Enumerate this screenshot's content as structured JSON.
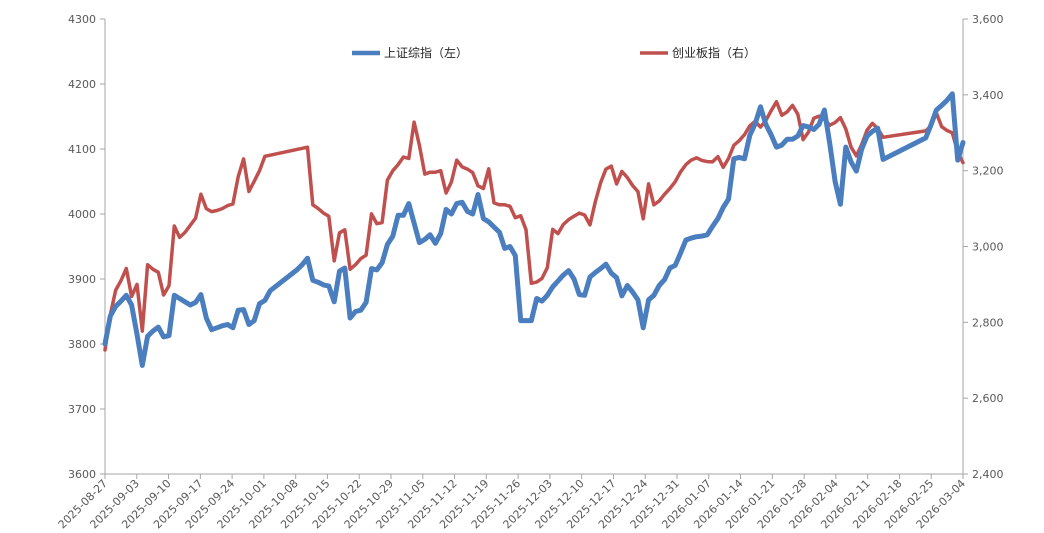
{
  "chart_data": {
    "type": "line",
    "title": "",
    "x_tick_labels": [
      "2025-08-27",
      "2025-09-03",
      "2025-09-10",
      "2025-09-17",
      "2025-09-24",
      "2025-10-01",
      "2025-10-08",
      "2025-10-15",
      "2025-10-22",
      "2025-10-29",
      "2025-11-05",
      "2025-11-12",
      "2025-11-19",
      "2025-11-26",
      "2025-12-03",
      "2025-12-10",
      "2025-12-17",
      "2025-12-24",
      "2025-12-31",
      "2026-01-07",
      "2026-01-14",
      "2026-01-21",
      "2026-01-28",
      "2026-02-04",
      "2026-02-11",
      "2026-02-18",
      "2026-02-25",
      "2026-03-04"
    ],
    "y_left": {
      "min": 3600,
      "max": 4300,
      "ticks": [
        3600,
        3700,
        3800,
        3900,
        4000,
        4100,
        4200,
        4300
      ],
      "labels": [
        "3600",
        "3700",
        "3800",
        "3900",
        "4000",
        "4100",
        "4200",
        "4300"
      ]
    },
    "y_right": {
      "min": 2400,
      "max": 3600,
      "ticks": [
        2400,
        2600,
        2800,
        3000,
        3200,
        3400,
        3600
      ],
      "labels": [
        "2,400",
        "2,600",
        "2,800",
        "3,000",
        "3,200",
        "3,400",
        "3,600"
      ]
    },
    "series": [
      {
        "name": "上证综指（左）",
        "axis": "left",
        "color": "#4a7ebf",
        "points": [
          [
            0,
            3800
          ],
          [
            1,
            3843
          ],
          [
            2,
            3858
          ],
          [
            3,
            3866
          ],
          [
            4,
            3875
          ],
          [
            5,
            3860
          ],
          [
            6,
            3815
          ],
          [
            7,
            3767
          ],
          [
            8,
            3812
          ],
          [
            9,
            3820
          ],
          [
            10,
            3826
          ],
          [
            11,
            3811
          ],
          [
            12,
            3813
          ],
          [
            13,
            3875
          ],
          [
            14,
            3870
          ],
          [
            15,
            3865
          ],
          [
            16,
            3860
          ],
          [
            17,
            3864
          ],
          [
            18,
            3876
          ],
          [
            19,
            3840
          ],
          [
            20,
            3822
          ],
          [
            21,
            3825
          ],
          [
            22,
            3828
          ],
          [
            23,
            3830
          ],
          [
            24,
            3825
          ],
          [
            25,
            3852
          ],
          [
            26,
            3853
          ],
          [
            27,
            3830
          ],
          [
            28,
            3836
          ],
          [
            29,
            3862
          ],
          [
            30,
            3867
          ],
          [
            31,
            3882
          ],
          [
            36,
            3914
          ],
          [
            37,
            3922
          ],
          [
            38,
            3932
          ],
          [
            39,
            3898
          ],
          [
            40,
            3895
          ],
          [
            41,
            3891
          ],
          [
            42,
            3889
          ],
          [
            43,
            3865
          ],
          [
            44,
            3912
          ],
          [
            45,
            3917
          ],
          [
            46,
            3840
          ],
          [
            47,
            3850
          ],
          [
            48,
            3852
          ],
          [
            49,
            3864
          ],
          [
            50,
            3916
          ],
          [
            51,
            3914
          ],
          [
            52,
            3925
          ],
          [
            53,
            3953
          ],
          [
            54,
            3966
          ],
          [
            55,
            3998
          ],
          [
            56,
            3998
          ],
          [
            57,
            4016
          ],
          [
            58,
            3986
          ],
          [
            59,
            3956
          ],
          [
            60,
            3961
          ],
          [
            61,
            3968
          ],
          [
            62,
            3955
          ],
          [
            63,
            3970
          ],
          [
            64,
            4007
          ],
          [
            65,
            4000
          ],
          [
            66,
            4016
          ],
          [
            67,
            4018
          ],
          [
            68,
            4004
          ],
          [
            69,
            4000
          ],
          [
            70,
            4030
          ],
          [
            71,
            3993
          ],
          [
            72,
            3988
          ],
          [
            73,
            3980
          ],
          [
            74,
            3972
          ],
          [
            75,
            3947
          ],
          [
            76,
            3950
          ],
          [
            77,
            3936
          ],
          [
            78,
            3836
          ],
          [
            79,
            3836
          ],
          [
            80,
            3836
          ],
          [
            81,
            3870
          ],
          [
            82,
            3866
          ],
          [
            83,
            3875
          ],
          [
            84,
            3888
          ],
          [
            85,
            3897
          ],
          [
            86,
            3906
          ],
          [
            87,
            3913
          ],
          [
            88,
            3900
          ],
          [
            89,
            3876
          ],
          [
            90,
            3875
          ],
          [
            91,
            3903
          ],
          [
            92,
            3910
          ],
          [
            93,
            3916
          ],
          [
            94,
            3923
          ],
          [
            95,
            3909
          ],
          [
            96,
            3902
          ],
          [
            97,
            3874
          ],
          [
            98,
            3890
          ],
          [
            99,
            3880
          ],
          [
            100,
            3868
          ],
          [
            101,
            3825
          ],
          [
            102,
            3868
          ],
          [
            103,
            3875
          ],
          [
            104,
            3890
          ],
          [
            105,
            3899
          ],
          [
            106,
            3917
          ],
          [
            107,
            3921
          ],
          [
            108,
            3940
          ],
          [
            109,
            3960
          ],
          [
            110,
            3963
          ],
          [
            111,
            3965
          ],
          [
            112,
            3966
          ],
          [
            113,
            3968
          ],
          [
            114,
            3981
          ],
          [
            115,
            3993
          ],
          [
            116,
            4010
          ],
          [
            117,
            4023
          ],
          [
            118,
            4085
          ],
          [
            119,
            4087
          ],
          [
            120,
            4085
          ],
          [
            121,
            4121
          ],
          [
            122,
            4139
          ],
          [
            123,
            4165
          ],
          [
            124,
            4138
          ],
          [
            125,
            4122
          ],
          [
            126,
            4103
          ],
          [
            127,
            4106
          ],
          [
            128,
            4115
          ],
          [
            129,
            4115
          ],
          [
            130,
            4120
          ],
          [
            131,
            4136
          ],
          [
            132,
            4134
          ],
          [
            133,
            4130
          ],
          [
            134,
            4138
          ],
          [
            135,
            4160
          ],
          [
            136,
            4108
          ],
          [
            137,
            4050
          ],
          [
            138,
            4015
          ],
          [
            139,
            4103
          ],
          [
            140,
            4080
          ],
          [
            141,
            4066
          ],
          [
            142,
            4100
          ],
          [
            143,
            4120
          ],
          [
            144,
            4127
          ],
          [
            145,
            4132
          ],
          [
            146,
            4084
          ],
          [
            154,
            4117
          ],
          [
            155,
            4137
          ],
          [
            156,
            4160
          ],
          [
            157,
            4167
          ],
          [
            158,
            4175
          ],
          [
            159,
            4185
          ],
          [
            160,
            4083
          ],
          [
            161,
            4110
          ]
        ]
      },
      {
        "name": "创业板指（右）",
        "axis": "right",
        "color": "#c0504d",
        "points": [
          [
            0,
            2727
          ],
          [
            1,
            2820
          ],
          [
            2,
            2885
          ],
          [
            3,
            2910
          ],
          [
            4,
            2942
          ],
          [
            5,
            2868
          ],
          [
            6,
            2900
          ],
          [
            7,
            2777
          ],
          [
            8,
            2952
          ],
          [
            9,
            2940
          ],
          [
            10,
            2932
          ],
          [
            11,
            2872
          ],
          [
            12,
            2897
          ],
          [
            13,
            3054
          ],
          [
            14,
            3024
          ],
          [
            15,
            3037
          ],
          [
            16,
            3056
          ],
          [
            17,
            3075
          ],
          [
            18,
            3138
          ],
          [
            19,
            3100
          ],
          [
            20,
            3092
          ],
          [
            21,
            3095
          ],
          [
            22,
            3100
          ],
          [
            23,
            3108
          ],
          [
            24,
            3112
          ],
          [
            25,
            3184
          ],
          [
            26,
            3231
          ],
          [
            27,
            3145
          ],
          [
            28,
            3172
          ],
          [
            29,
            3200
          ],
          [
            30,
            3238
          ],
          [
            38,
            3262
          ],
          [
            39,
            3110
          ],
          [
            40,
            3100
          ],
          [
            41,
            3088
          ],
          [
            42,
            3080
          ],
          [
            43,
            2962
          ],
          [
            44,
            3036
          ],
          [
            45,
            3044
          ],
          [
            46,
            2940
          ],
          [
            47,
            2952
          ],
          [
            48,
            2968
          ],
          [
            49,
            2977
          ],
          [
            50,
            3086
          ],
          [
            51,
            3060
          ],
          [
            52,
            3063
          ],
          [
            53,
            3175
          ],
          [
            54,
            3200
          ],
          [
            55,
            3216
          ],
          [
            56,
            3236
          ],
          [
            57,
            3232
          ],
          [
            58,
            3328
          ],
          [
            59,
            3267
          ],
          [
            60,
            3191
          ],
          [
            61,
            3196
          ],
          [
            62,
            3196
          ],
          [
            63,
            3200
          ],
          [
            64,
            3141
          ],
          [
            65,
            3170
          ],
          [
            66,
            3228
          ],
          [
            67,
            3210
          ],
          [
            68,
            3204
          ],
          [
            69,
            3195
          ],
          [
            70,
            3160
          ],
          [
            71,
            3153
          ],
          [
            72,
            3205
          ],
          [
            73,
            3115
          ],
          [
            74,
            3110
          ],
          [
            75,
            3110
          ],
          [
            76,
            3106
          ],
          [
            77,
            3076
          ],
          [
            78,
            3081
          ],
          [
            79,
            3044
          ],
          [
            80,
            2903
          ],
          [
            81,
            2906
          ],
          [
            82,
            2916
          ],
          [
            83,
            2944
          ],
          [
            84,
            3045
          ],
          [
            85,
            3034
          ],
          [
            86,
            3058
          ],
          [
            87,
            3071
          ],
          [
            88,
            3080
          ],
          [
            89,
            3088
          ],
          [
            90,
            3083
          ],
          [
            91,
            3057
          ],
          [
            92,
            3118
          ],
          [
            93,
            3168
          ],
          [
            94,
            3204
          ],
          [
            95,
            3212
          ],
          [
            96,
            3165
          ],
          [
            97,
            3198
          ],
          [
            98,
            3182
          ],
          [
            99,
            3161
          ],
          [
            100,
            3145
          ],
          [
            101,
            3073
          ],
          [
            102,
            3165
          ],
          [
            103,
            3110
          ],
          [
            104,
            3120
          ],
          [
            105,
            3138
          ],
          [
            106,
            3153
          ],
          [
            107,
            3171
          ],
          [
            108,
            3197
          ],
          [
            109,
            3216
          ],
          [
            110,
            3228
          ],
          [
            111,
            3234
          ],
          [
            112,
            3227
          ],
          [
            113,
            3224
          ],
          [
            114,
            3223
          ],
          [
            115,
            3237
          ],
          [
            116,
            3209
          ],
          [
            117,
            3232
          ],
          [
            118,
            3267
          ],
          [
            119,
            3279
          ],
          [
            120,
            3295
          ],
          [
            121,
            3318
          ],
          [
            122,
            3330
          ],
          [
            123,
            3315
          ],
          [
            124,
            3332
          ],
          [
            125,
            3358
          ],
          [
            126,
            3382
          ],
          [
            127,
            3346
          ],
          [
            128,
            3355
          ],
          [
            129,
            3372
          ],
          [
            130,
            3349
          ],
          [
            131,
            3282
          ],
          [
            132,
            3302
          ],
          [
            133,
            3338
          ],
          [
            134,
            3344
          ],
          [
            135,
            3335
          ],
          [
            136,
            3320
          ],
          [
            137,
            3327
          ],
          [
            138,
            3340
          ],
          [
            139,
            3310
          ],
          [
            140,
            3262
          ],
          [
            141,
            3239
          ],
          [
            142,
            3269
          ],
          [
            143,
            3307
          ],
          [
            144,
            3325
          ],
          [
            145,
            3311
          ],
          [
            146,
            3288
          ],
          [
            154,
            3305
          ],
          [
            155,
            3318
          ],
          [
            156,
            3352
          ],
          [
            157,
            3316
          ],
          [
            158,
            3306
          ],
          [
            159,
            3300
          ],
          [
            160,
            3249
          ],
          [
            161,
            3221
          ]
        ]
      }
    ],
    "x_range": [
      0,
      161
    ],
    "legend_position": "top",
    "grid": false
  }
}
